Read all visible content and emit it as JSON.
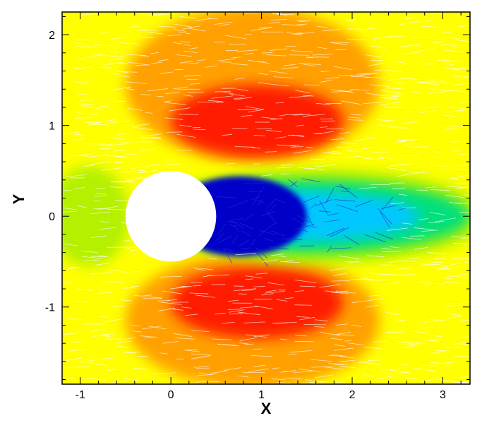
{
  "chart_data": {
    "type": "contour",
    "title": "",
    "xlabel": "X",
    "ylabel": "Y",
    "xlim": [
      -1.2,
      3.3
    ],
    "ylim": [
      -1.85,
      2.25
    ],
    "x_ticks": [
      -1,
      0,
      1,
      2,
      3
    ],
    "x_tick_labels": [
      "-1",
      "0",
      "1",
      "2",
      "3"
    ],
    "y_ticks": [
      -1,
      0,
      1,
      2
    ],
    "y_tick_labels": [
      "-1",
      "0",
      "1",
      "2"
    ],
    "grid": false,
    "legend": "none",
    "cylinder": {
      "center": [
        0,
        0
      ],
      "radius": 0.5
    },
    "colormap": [
      "#0000c8",
      "#00c8ff",
      "#00e07a",
      "#b4f000",
      "#ffff00",
      "#ffa000",
      "#ff1e00"
    ],
    "background_color": "#ffff00",
    "overlay": "streamlines"
  }
}
